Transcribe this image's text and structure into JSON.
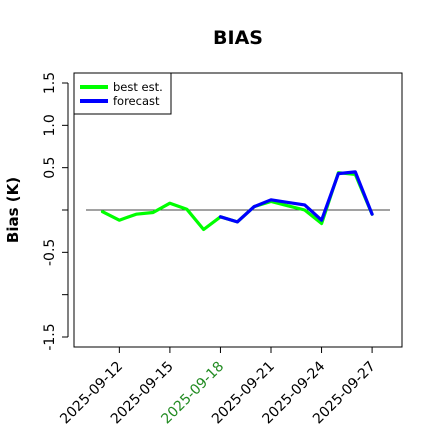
{
  "chart_data": {
    "type": "line",
    "title": "BIAS",
    "xlabel": "",
    "ylabel": "Bias (K)",
    "ylim": [
      -1.6,
      1.6
    ],
    "yticks": [
      -1.5,
      -1.0,
      -0.5,
      0.0,
      0.5,
      1.0,
      1.5
    ],
    "ytick_labels": [
      "-1.5",
      "",
      "-0.5",
      "",
      "0.5",
      "1.0",
      "1.5"
    ],
    "x": [
      "2025-09-11",
      "2025-09-12",
      "2025-09-13",
      "2025-09-14",
      "2025-09-15",
      "2025-09-16",
      "2025-09-17",
      "2025-09-18",
      "2025-09-19",
      "2025-09-20",
      "2025-09-21",
      "2025-09-22",
      "2025-09-23",
      "2025-09-24",
      "2025-09-25",
      "2025-09-26",
      "2025-09-27"
    ],
    "xtick_labels": [
      "2025-09-12",
      "2025-09-15",
      "2025-09-18",
      "2025-09-21",
      "2025-09-24",
      "2025-09-27"
    ],
    "xtick_colors": [
      "#000000",
      "#000000",
      "#228B22",
      "#000000",
      "#000000",
      "#000000"
    ],
    "series": [
      {
        "name": "best est.",
        "color": "#00ff00",
        "values": [
          -0.02,
          -0.12,
          -0.05,
          -0.03,
          0.08,
          0.01,
          -0.23,
          -0.08,
          -0.14,
          0.04,
          0.1,
          0.05,
          0.0,
          -0.16,
          0.44,
          0.42,
          -0.05
        ]
      },
      {
        "name": "forecast",
        "color": "#0000ff",
        "values": [
          null,
          null,
          null,
          null,
          null,
          null,
          null,
          -0.08,
          -0.14,
          0.04,
          0.12,
          0.09,
          0.06,
          -0.12,
          0.43,
          0.45,
          -0.05
        ]
      }
    ],
    "hline": 0.0,
    "grid": false,
    "legend_position": "top-left"
  }
}
